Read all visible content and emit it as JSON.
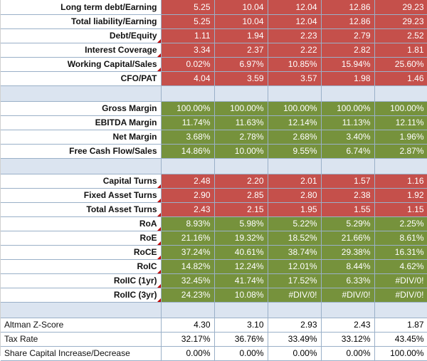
{
  "sheet": {
    "group1": [
      {
        "label": "Long term debt/Earning",
        "values": [
          "5.25",
          "10.04",
          "12.04",
          "12.86",
          "29.23"
        ]
      },
      {
        "label": "Total liability/Earning",
        "values": [
          "5.25",
          "10.04",
          "12.04",
          "12.86",
          "29.23"
        ]
      },
      {
        "label": "Debt/Equity",
        "values": [
          "1.11",
          "1.94",
          "2.23",
          "2.79",
          "2.52"
        ]
      },
      {
        "label": "Interest Coverage",
        "values": [
          "3.34",
          "2.37",
          "2.22",
          "2.82",
          "1.81"
        ]
      },
      {
        "label": "Working Capital/Sales",
        "values": [
          "0.02%",
          "6.97%",
          "10.85%",
          "15.94%",
          "25.60%"
        ]
      },
      {
        "label": "CFO/PAT",
        "values": [
          "4.04",
          "3.59",
          "3.57",
          "1.98",
          "1.46"
        ]
      }
    ],
    "group2": [
      {
        "label": "Gross Margin",
        "values": [
          "100.00%",
          "100.00%",
          "100.00%",
          "100.00%",
          "100.00%"
        ]
      },
      {
        "label": "EBITDA Margin",
        "values": [
          "11.74%",
          "11.63%",
          "12.14%",
          "11.13%",
          "12.11%"
        ]
      },
      {
        "label": "Net Margin",
        "values": [
          "3.68%",
          "2.78%",
          "2.68%",
          "3.40%",
          "1.96%"
        ]
      },
      {
        "label": "Free Cash Flow/Sales",
        "values": [
          "14.86%",
          "10.00%",
          "9.55%",
          "6.74%",
          "2.87%"
        ]
      }
    ],
    "group3": [
      {
        "label": "Capital Turns",
        "values": [
          "2.48",
          "2.20",
          "2.01",
          "1.57",
          "1.16"
        ]
      },
      {
        "label": "Fixed Asset Turns",
        "values": [
          "2.90",
          "2.85",
          "2.80",
          "2.38",
          "1.92"
        ]
      },
      {
        "label": "Total Asset Turns",
        "values": [
          "2.43",
          "2.15",
          "1.95",
          "1.55",
          "1.15"
        ]
      },
      {
        "label": "RoA",
        "values": [
          "8.93%",
          "5.98%",
          "5.22%",
          "5.29%",
          "2.25%"
        ]
      },
      {
        "label": "RoE",
        "values": [
          "21.16%",
          "19.32%",
          "18.52%",
          "21.66%",
          "8.61%"
        ]
      },
      {
        "label": "RoCE",
        "values": [
          "37.24%",
          "40.61%",
          "38.74%",
          "29.38%",
          "16.31%"
        ]
      },
      {
        "label": "RoIC",
        "values": [
          "14.82%",
          "12.24%",
          "12.01%",
          "8.44%",
          "4.62%"
        ]
      },
      {
        "label": "RoIIC (1yr)",
        "values": [
          "32.45%",
          "41.74%",
          "17.52%",
          "6.33%",
          "#DIV/0!"
        ]
      },
      {
        "label": "RoIIC (3yr)",
        "values": [
          "24.23%",
          "10.08%",
          "#DIV/0!",
          "#DIV/0!",
          "#DIV/0!"
        ]
      }
    ],
    "group4": [
      {
        "label": "Altman Z-Score",
        "values": [
          "4.30",
          "3.10",
          "2.93",
          "2.43",
          "1.87"
        ]
      },
      {
        "label": "Tax Rate",
        "values": [
          "32.17%",
          "36.76%",
          "33.49%",
          "33.12%",
          "43.45%"
        ]
      },
      {
        "label": "Share Capital Increase/Decrease",
        "values": [
          "0.00%",
          "0.00%",
          "0.00%",
          "0.00%",
          "100.00%"
        ]
      }
    ],
    "colors": {
      "red": "#c5504b",
      "green": "#76923c",
      "spacer": "#dbe4f0",
      "grid": "#9ab0c8",
      "comment_marker": "#c00000"
    }
  }
}
